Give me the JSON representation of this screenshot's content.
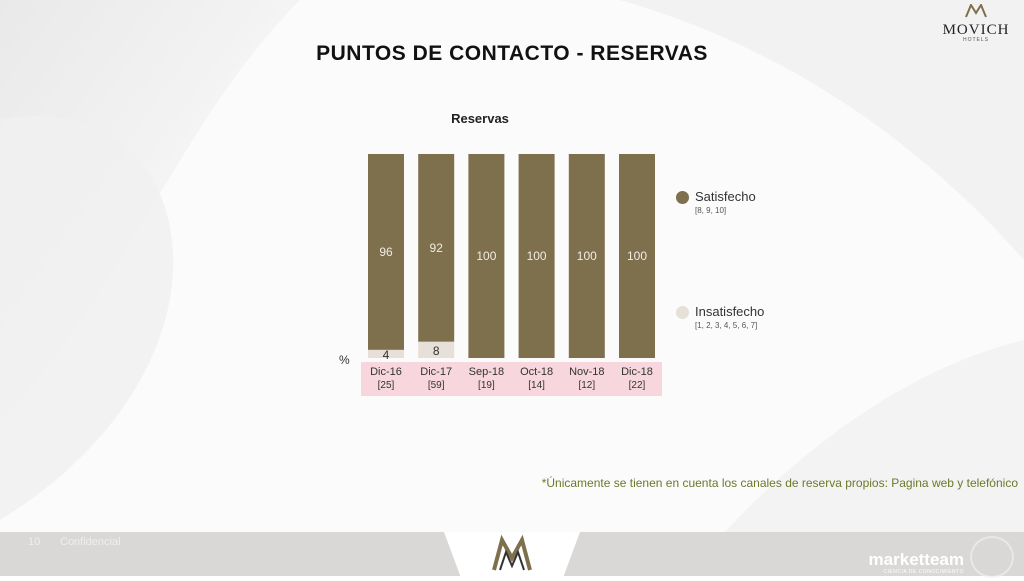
{
  "header": {
    "title": "PUNTOS DE CONTACTO - RESERVAS",
    "brand": "MOVICH",
    "brand_sub": "HOTELS"
  },
  "chart_data": {
    "type": "bar",
    "stacked": true,
    "title": "Reservas",
    "ylabel": "%",
    "ylim": [
      0,
      100
    ],
    "categories": [
      "Dic-16",
      "Dic-17",
      "Sep-18",
      "Oct-18",
      "Nov-18",
      "Dic-18"
    ],
    "base_sizes": [
      "[25]",
      "[59]",
      "[19]",
      "[14]",
      "[12]",
      "[22]"
    ],
    "series": [
      {
        "name": "Satisfecho",
        "scale": "[8, 9, 10]",
        "color": "#7e6f4d",
        "values": [
          96,
          92,
          100,
          100,
          100,
          100
        ]
      },
      {
        "name": "Insatisfecho",
        "scale": "[1, 2, 3, 4, 5, 6, 7]",
        "color": "#e6e0d8",
        "values": [
          4,
          8,
          0,
          0,
          0,
          0
        ]
      }
    ],
    "category_band_color": "#f7d6dd",
    "legend": "right"
  },
  "footnote": "*Únicamente se tienen en cuenta los canales de reserva propios: Pagina web y telefónico",
  "footer": {
    "page": "10",
    "label": "Confidencial",
    "brand": "marketteam",
    "brand_sub": "CIENCIA DE CONOCIMIENTO"
  }
}
